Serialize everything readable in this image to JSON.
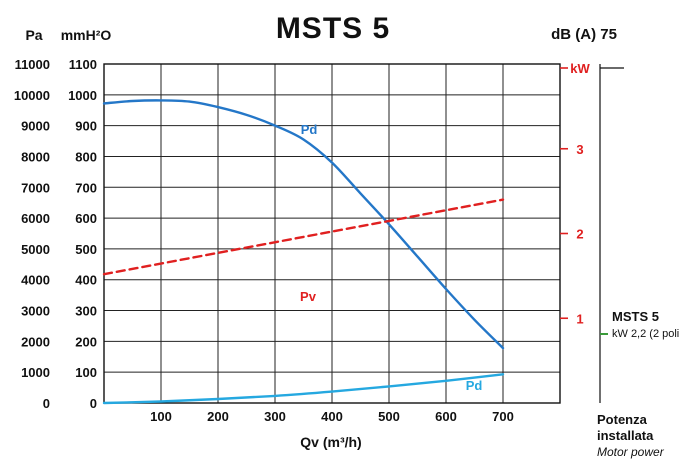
{
  "chart_data": {
    "type": "line",
    "title": "MSTS 5",
    "noise_label": "dB (A) 75",
    "xlabel": "Qv (m³/h)",
    "xlim": [
      0,
      800
    ],
    "x_ticks": [
      "100",
      "200",
      "300",
      "400",
      "500",
      "600",
      "700"
    ],
    "left_axis_unit": "Pa",
    "left_ticks": [
      "0",
      "1000",
      "2000",
      "3000",
      "4000",
      "5000",
      "6000",
      "7000",
      "8000",
      "9000",
      "10000",
      "11000"
    ],
    "mmh2o_axis_unit": "mmH²O",
    "mmh2o_ticks": [
      "0",
      "100",
      "200",
      "300",
      "400",
      "500",
      "600",
      "700",
      "800",
      "900",
      "1000",
      "1100"
    ],
    "ylim": [
      0,
      1100
    ],
    "power_axis_unit": "kW",
    "power_ticks": [
      "1",
      "2",
      "3"
    ],
    "power_ylim": [
      0,
      4
    ],
    "series": [
      {
        "name": "Pd",
        "axis": "mmH2O",
        "color": "#2477c8",
        "style": "solid",
        "x": [
          0,
          50,
          100,
          150,
          200,
          250,
          300,
          350,
          400,
          450,
          500,
          550,
          600,
          650,
          700
        ],
        "y": [
          972,
          980,
          982,
          978,
          960,
          935,
          900,
          855,
          780,
          680,
          580,
          475,
          370,
          270,
          178
        ]
      },
      {
        "name": "Pv",
        "axis": "kW",
        "color": "#e02020",
        "style": "dashed",
        "x": [
          0,
          700
        ],
        "y": [
          1.52,
          2.4
        ]
      },
      {
        "name": "Pd",
        "axis": "mmH2O",
        "color": "#25a8e0",
        "style": "solid",
        "x": [
          0,
          100,
          200,
          300,
          400,
          500,
          600,
          700
        ],
        "y": [
          0,
          5,
          13,
          23,
          37,
          54,
          72,
          93
        ]
      }
    ],
    "series_labels": {
      "pd_upper": "Pd",
      "pv": "Pv",
      "pd_lower": "Pd"
    },
    "grid": true
  },
  "motor": {
    "model": "MSTS 5",
    "power": "kW 2,2 (2 poli",
    "footer_line1": "Potenza",
    "footer_line2": "installata",
    "footer_line3": "Motor power"
  }
}
